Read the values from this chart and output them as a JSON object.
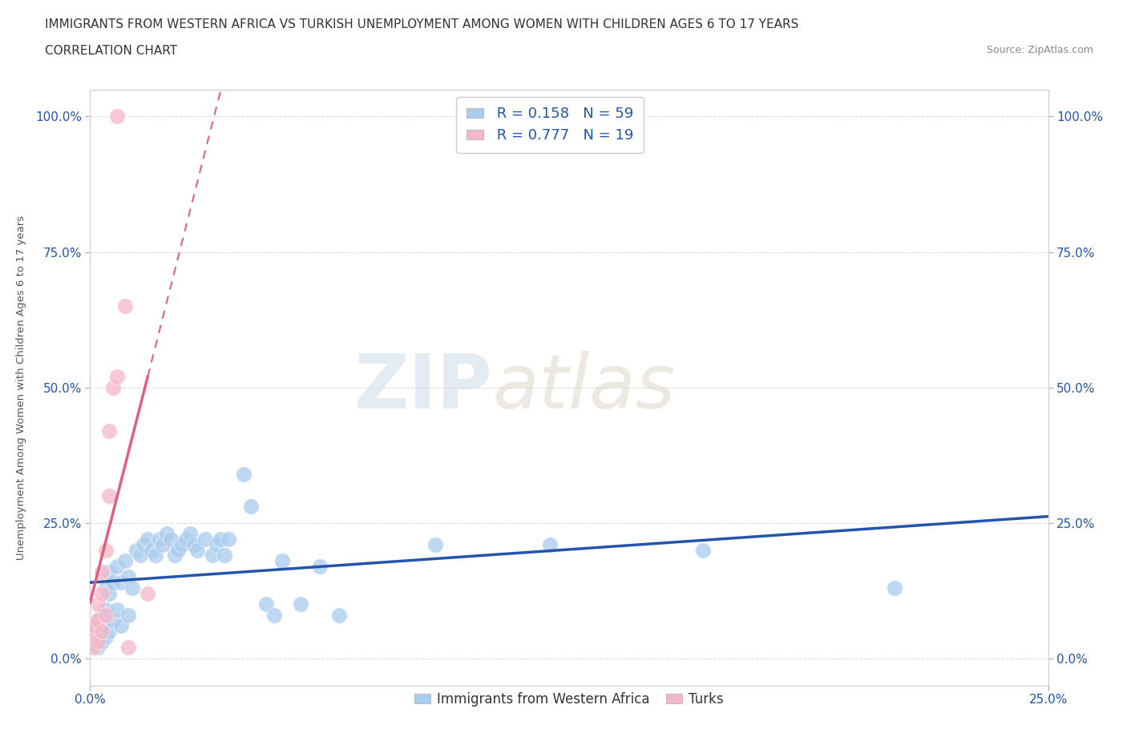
{
  "title_line1": "IMMIGRANTS FROM WESTERN AFRICA VS TURKISH UNEMPLOYMENT AMONG WOMEN WITH CHILDREN AGES 6 TO 17 YEARS",
  "title_line2": "CORRELATION CHART",
  "source_text": "Source: ZipAtlas.com",
  "ylabel": "Unemployment Among Women with Children Ages 6 to 17 years",
  "xlim": [
    0.0,
    0.25
  ],
  "ylim": [
    -0.05,
    1.05
  ],
  "ytick_labels": [
    "0.0%",
    "25.0%",
    "50.0%",
    "75.0%",
    "100.0%"
  ],
  "ytick_values": [
    0.0,
    0.25,
    0.5,
    0.75,
    1.0
  ],
  "xtick_labels": [
    "0.0%",
    "25.0%"
  ],
  "xtick_values": [
    0.0,
    0.25
  ],
  "watermark_zip": "ZIP",
  "watermark_atlas": "atlas",
  "blue_R": 0.158,
  "blue_N": 59,
  "pink_R": 0.777,
  "pink_N": 19,
  "blue_color": "#aaccee",
  "pink_color": "#f5b8c8",
  "blue_line_color": "#2255aa",
  "pink_line_color": "#e06080",
  "blue_scatter": [
    [
      0.001,
      0.03
    ],
    [
      0.001,
      0.05
    ],
    [
      0.002,
      0.02
    ],
    [
      0.002,
      0.04
    ],
    [
      0.002,
      0.07
    ],
    [
      0.003,
      0.03
    ],
    [
      0.003,
      0.06
    ],
    [
      0.003,
      0.08
    ],
    [
      0.004,
      0.04
    ],
    [
      0.004,
      0.09
    ],
    [
      0.004,
      0.13
    ],
    [
      0.005,
      0.05
    ],
    [
      0.005,
      0.12
    ],
    [
      0.005,
      0.16
    ],
    [
      0.006,
      0.07
    ],
    [
      0.006,
      0.14
    ],
    [
      0.007,
      0.09
    ],
    [
      0.007,
      0.17
    ],
    [
      0.008,
      0.06
    ],
    [
      0.008,
      0.14
    ],
    [
      0.009,
      0.18
    ],
    [
      0.01,
      0.08
    ],
    [
      0.01,
      0.15
    ],
    [
      0.011,
      0.13
    ],
    [
      0.012,
      0.2
    ],
    [
      0.013,
      0.19
    ],
    [
      0.014,
      0.21
    ],
    [
      0.015,
      0.22
    ],
    [
      0.016,
      0.2
    ],
    [
      0.017,
      0.19
    ],
    [
      0.018,
      0.22
    ],
    [
      0.019,
      0.21
    ],
    [
      0.02,
      0.23
    ],
    [
      0.021,
      0.22
    ],
    [
      0.022,
      0.19
    ],
    [
      0.023,
      0.2
    ],
    [
      0.024,
      0.21
    ],
    [
      0.025,
      0.22
    ],
    [
      0.026,
      0.23
    ],
    [
      0.027,
      0.21
    ],
    [
      0.028,
      0.2
    ],
    [
      0.03,
      0.22
    ],
    [
      0.032,
      0.19
    ],
    [
      0.033,
      0.21
    ],
    [
      0.034,
      0.22
    ],
    [
      0.035,
      0.19
    ],
    [
      0.036,
      0.22
    ],
    [
      0.04,
      0.34
    ],
    [
      0.042,
      0.28
    ],
    [
      0.046,
      0.1
    ],
    [
      0.048,
      0.08
    ],
    [
      0.05,
      0.18
    ],
    [
      0.055,
      0.1
    ],
    [
      0.06,
      0.17
    ],
    [
      0.065,
      0.08
    ],
    [
      0.09,
      0.21
    ],
    [
      0.12,
      0.21
    ],
    [
      0.16,
      0.2
    ],
    [
      0.21,
      0.13
    ]
  ],
  "pink_scatter": [
    [
      0.001,
      0.02
    ],
    [
      0.001,
      0.04
    ],
    [
      0.001,
      0.06
    ],
    [
      0.002,
      0.03
    ],
    [
      0.002,
      0.07
    ],
    [
      0.002,
      0.1
    ],
    [
      0.003,
      0.05
    ],
    [
      0.003,
      0.12
    ],
    [
      0.003,
      0.16
    ],
    [
      0.004,
      0.08
    ],
    [
      0.004,
      0.2
    ],
    [
      0.005,
      0.3
    ],
    [
      0.005,
      0.42
    ],
    [
      0.006,
      0.5
    ],
    [
      0.007,
      0.52
    ],
    [
      0.009,
      0.65
    ],
    [
      0.01,
      0.02
    ],
    [
      0.015,
      0.12
    ],
    [
      0.007,
      1.0
    ]
  ],
  "background_color": "#ffffff",
  "grid_color": "#dddddd",
  "tick_color": "#2255aa"
}
